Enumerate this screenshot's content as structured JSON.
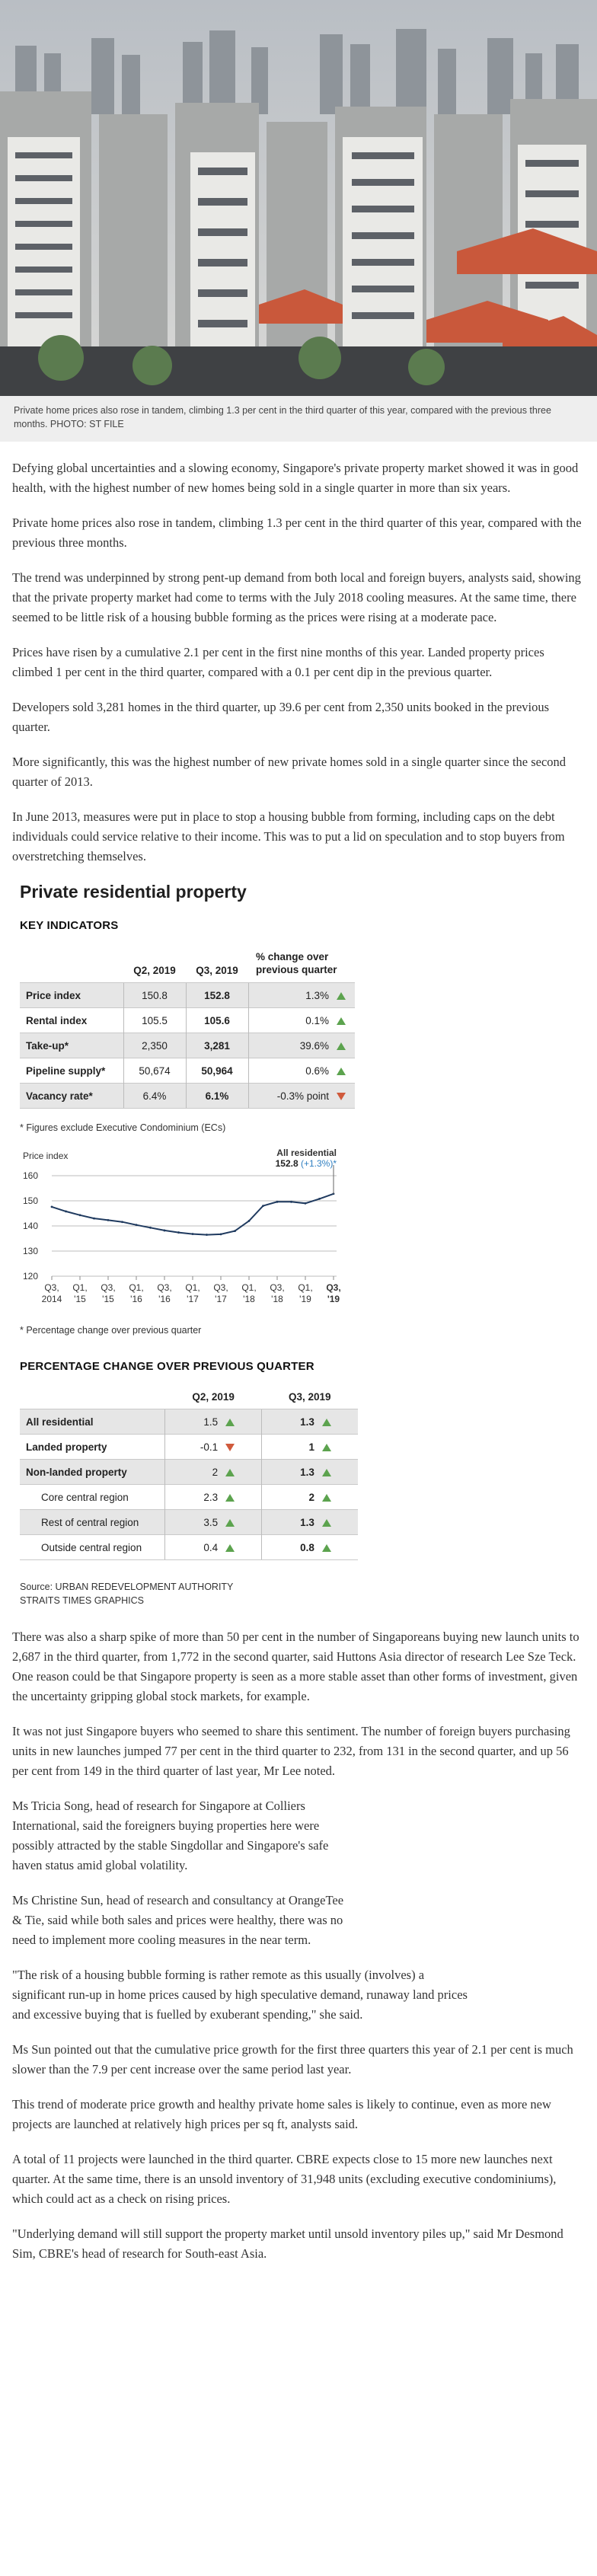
{
  "photo": {
    "caption": "Private home prices also rose in tandem, climbing 1.3 per cent in the third quarter of this year, compared with the previous three months. PHOTO: ST FILE"
  },
  "article": {
    "paragraphs_top": [
      "Defying global uncertainties and a slowing economy, Singapore's private property market showed it was in good health, with the highest number of new homes being sold in a single quarter in more than six years.",
      "Private home prices also rose in tandem, climbing 1.3 per cent in the third quarter of this year, compared with the previous three months.",
      "The trend was underpinned by strong pent-up demand from both local and foreign buyers, analysts said, showing that the private property market had come to terms with the July 2018 cooling measures. At the same time, there seemed to be little risk of a housing bubble forming as the prices were rising at a moderate pace.",
      "Prices have risen by a cumulative 2.1 per cent in the first nine months of this year. Landed property prices climbed 1 per cent in the third quarter, compared with a 0.1 per cent dip in the previous quarter.",
      "Developers sold 3,281 homes in the third quarter, up 39.6 per cent from 2,350 units booked in the previous quarter.",
      "More significantly, this was the highest number of new private homes sold in a single quarter since the second quarter of 2013.",
      "In June 2013, measures were put in place to stop a housing bubble from forming, including caps on the debt individuals could service relative to their income. This was to put a lid on speculation and to stop buyers from overstretching themselves."
    ],
    "paragraphs_bottom": [
      "There was also a sharp spike of more than 50 per cent in the number of Singaporeans buying new launch units to 2,687 in the third quarter, from 1,772 in the second quarter, said Huttons Asia director of research Lee Sze Teck. One reason could be that Singapore property is seen as a more stable asset than other forms of investment, given the uncertainty gripping global stock markets, for example.",
      "It was not just Singapore buyers who seemed to share this sentiment. The number of foreign buyers purchasing units in new launches jumped 77 per cent in the third quarter to 232, from 131 in the second quarter, and up 56 per cent from 149 in the third quarter of last year, Mr Lee noted."
    ],
    "paragraphs_narrow": [
      "Ms Tricia Song, head of research for Singapore at Colliers International, said the foreigners buying properties here were possibly attracted by the stable Singdollar and Singapore's safe haven status amid global volatility.",
      "Ms Christine Sun, head of research and consultancy at OrangeTee & Tie, said while both sales and prices were healthy, there was no need to implement more cooling measures in the near term."
    ],
    "quote_narrow": "\"The risk of a housing bubble forming is rather remote as this usually (involves) a significant run-up in home prices caused by high speculative demand, runaway land prices and excessive buying that is fuelled by exuberant spending,\" she said.",
    "paragraphs_end": [
      "Ms Sun pointed out that the cumulative price growth for the first three quarters this year of 2.1 per cent is much slower than the 7.9 per cent increase over the same period last year.",
      "This trend of moderate price growth and healthy private home sales is likely to continue, even as more new projects are launched at relatively high prices per sq ft, analysts said.",
      "A total of 11 projects were launched in the third quarter. CBRE expects close to 15 more new launches next quarter. At the same time, there is an unsold inventory of 31,948 units (excluding executive condominiums), which could act as a check on rising prices.",
      "\"Underlying demand will still support the property market until unsold inventory piles up,\" said Mr Desmond Sim, CBRE's head of research for South-east Asia."
    ]
  },
  "graphic": {
    "title": "Private residential property",
    "key_heading": "KEY INDICATORS",
    "key_columns": [
      "",
      "Q2, 2019",
      "Q3, 2019",
      "% change over previous quarter"
    ],
    "key_rows": [
      {
        "name": "Price index",
        "q2": "150.8",
        "q3": "152.8",
        "change": "1.3%",
        "dir": "up"
      },
      {
        "name": "Rental index",
        "q2": "105.5",
        "q3": "105.6",
        "change": "0.1%",
        "dir": "up"
      },
      {
        "name": "Take-up*",
        "q2": "2,350",
        "q3": "3,281",
        "change": "39.6%",
        "dir": "up"
      },
      {
        "name": "Pipeline supply*",
        "q2": "50,674",
        "q3": "50,964",
        "change": "0.6%",
        "dir": "up"
      },
      {
        "name": "Vacancy rate*",
        "q2": "6.4%",
        "q3": "6.1%",
        "change": "-0.3% point",
        "dir": "down"
      }
    ],
    "key_footnote": "* Figures exclude Executive Condominium (ECs)",
    "chart_footnote": "* Percentage change over previous quarter",
    "pct_heading": "PERCENTAGE CHANGE OVER PREVIOUS QUARTER",
    "pct_columns": [
      "",
      "Q2, 2019",
      "Q3, 2019"
    ],
    "pct_rows": [
      {
        "name": "All residential",
        "q2": "1.5",
        "q2dir": "up",
        "q3": "1.3",
        "q3dir": "up",
        "sub": false
      },
      {
        "name": "Landed property",
        "q2": "-0.1",
        "q2dir": "down",
        "q3": "1",
        "q3dir": "up",
        "sub": false
      },
      {
        "name": "Non-landed property",
        "q2": "2",
        "q2dir": "up",
        "q3": "1.3",
        "q3dir": "up",
        "sub": false
      },
      {
        "name": "Core central region",
        "q2": "2.3",
        "q2dir": "up",
        "q3": "2",
        "q3dir": "up",
        "sub": true
      },
      {
        "name": "Rest of central region",
        "q2": "3.5",
        "q2dir": "up",
        "q3": "1.3",
        "q3dir": "up",
        "sub": true
      },
      {
        "name": "Outside central region",
        "q2": "0.4",
        "q2dir": "up",
        "q3": "0.8",
        "q3dir": "up",
        "sub": true
      }
    ],
    "source_line1": "Source: URBAN REDEVELOPMENT AUTHORITY",
    "source_line2": "STRAITS TIMES GRAPHICS"
  },
  "colors": {
    "up": "#5ca34e",
    "down": "#d05a3c",
    "line": "#1f3a5f",
    "highlight": "#2f7fc1"
  },
  "chart_data": {
    "type": "line",
    "ylabel": "Price index",
    "ylim": [
      120,
      160
    ],
    "yticks": [
      120,
      130,
      140,
      150,
      160
    ],
    "x_labels": [
      [
        "Q3,",
        "2014"
      ],
      [
        "Q1,",
        "'15"
      ],
      [
        "Q3,",
        "'15"
      ],
      [
        "Q1,",
        "'16"
      ],
      [
        "Q3,",
        "'16"
      ],
      [
        "Q1,",
        "'17"
      ],
      [
        "Q3,",
        "'17"
      ],
      [
        "Q1,",
        "'18"
      ],
      [
        "Q3,",
        "'18"
      ],
      [
        "Q1,",
        "'19"
      ],
      [
        "Q3,",
        "'19"
      ]
    ],
    "series": [
      {
        "name": "All residential",
        "x": [
          "Q3 2014",
          "Q4 2014",
          "Q1 2015",
          "Q2 2015",
          "Q3 2015",
          "Q4 2015",
          "Q1 2016",
          "Q2 2016",
          "Q3 2016",
          "Q4 2016",
          "Q1 2017",
          "Q2 2017",
          "Q3 2017",
          "Q4 2017",
          "Q1 2018",
          "Q2 2018",
          "Q3 2018",
          "Q4 2018",
          "Q1 2019",
          "Q2 2019",
          "Q3 2019"
        ],
        "values": [
          147.6,
          145.8,
          144.3,
          143.0,
          142.3,
          141.6,
          140.4,
          139.3,
          138.2,
          137.4,
          136.8,
          136.5,
          136.7,
          138.0,
          142.0,
          148.0,
          149.6,
          149.6,
          149.0,
          150.8,
          152.8
        ]
      }
    ],
    "annotation_label": "All residential",
    "annotation_value": "152.8",
    "annotation_change": "(+1.3%)*"
  }
}
